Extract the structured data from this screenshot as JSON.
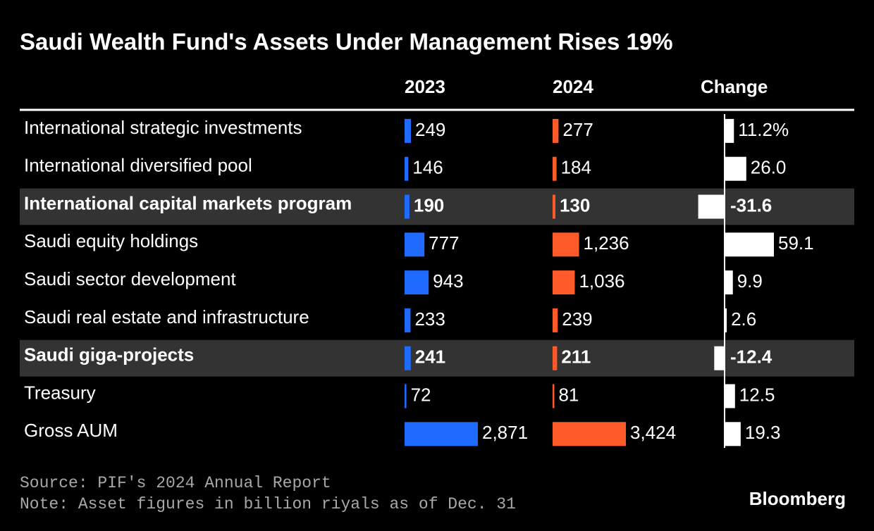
{
  "chart_data": {
    "type": "bar-table",
    "title": "Saudi Wealth Fund's Assets Under Management Rises 19%",
    "categories": [
      "International strategic investments",
      "International diversified pool",
      "International capital markets program",
      "Saudi equity holdings",
      "Saudi sector development",
      "Saudi real estate and infrastructure",
      "Saudi giga-projects",
      "Treasury",
      "Gross AUM"
    ],
    "series": [
      {
        "name": "2023",
        "color": "#1f6bff",
        "values": [
          249,
          146,
          190,
          777,
          943,
          233,
          241,
          72,
          2871
        ],
        "value_labels": [
          "249",
          "146",
          "190",
          "777",
          "943",
          "233",
          "241",
          "72",
          "2,871"
        ]
      },
      {
        "name": "2024",
        "color": "#ff5a2a",
        "values": [
          277,
          184,
          130,
          1236,
          1036,
          239,
          211,
          81,
          3424
        ],
        "value_labels": [
          "277",
          "184",
          "130",
          "1,236",
          "1,036",
          "239",
          "211",
          "81",
          "3,424"
        ]
      },
      {
        "name": "Change",
        "color": "#ffffff",
        "values": [
          11.2,
          26.0,
          -31.6,
          59.1,
          9.9,
          2.6,
          -12.4,
          12.5,
          19.3
        ],
        "value_labels": [
          "11.2%",
          "26.0",
          "-31.6",
          "59.1",
          "9.9",
          "2.6",
          "-12.4",
          "12.5",
          "19.3"
        ]
      }
    ],
    "source": "Source: PIF's 2024 Annual Report",
    "note": "Note: Asset figures in billion riyals as of Dec. 31",
    "brand": "Bloomberg"
  }
}
